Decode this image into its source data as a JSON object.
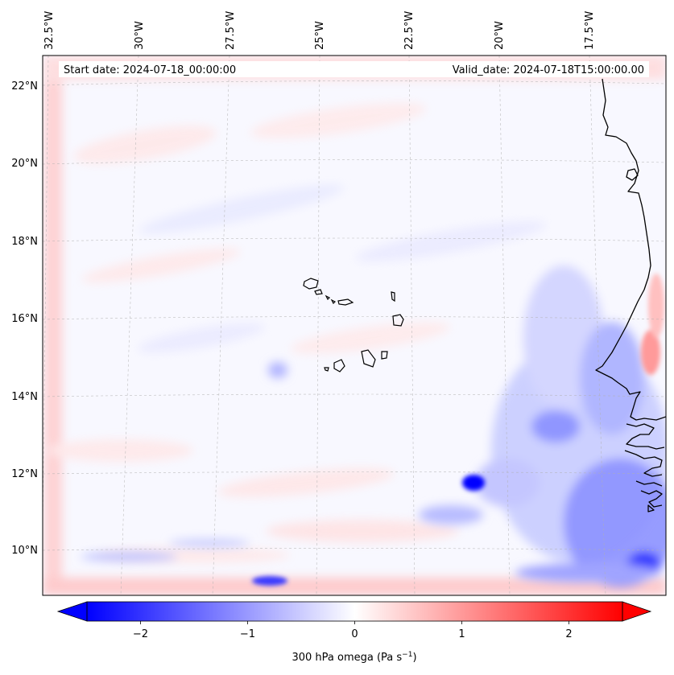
{
  "header": {
    "start_date": "Start date: 2024-07-18_00:00:00",
    "valid_date": "Valid_date: 2024-07-18T15:00:00.00"
  },
  "longitude_labels": [
    "32.5°W",
    "30°W",
    "27.5°W",
    "25°W",
    "22.5°W",
    "20°W",
    "17.5°W"
  ],
  "latitude_labels": [
    "22°N",
    "20°N",
    "18°N",
    "16°N",
    "14°N",
    "12°N",
    "10°N"
  ],
  "colorbar": {
    "tick_labels": [
      "−2",
      "−1",
      "0",
      "1",
      "2"
    ],
    "tick_values": [
      -2,
      -1,
      0,
      1,
      2
    ],
    "range": [
      -2.5,
      2.5
    ],
    "extend": "both",
    "label_main": "300 hPa omega (Pa s",
    "label_exp": "−1",
    "label_end": ")",
    "colors": {
      "negative": "#0000ff",
      "zero": "#ffffff",
      "positive": "#ff0000"
    }
  },
  "map": {
    "projection_grid": "dashed-grey",
    "coastline_color": "#000000",
    "features": [
      "Cape Verde islands",
      "West African coastline"
    ]
  }
}
